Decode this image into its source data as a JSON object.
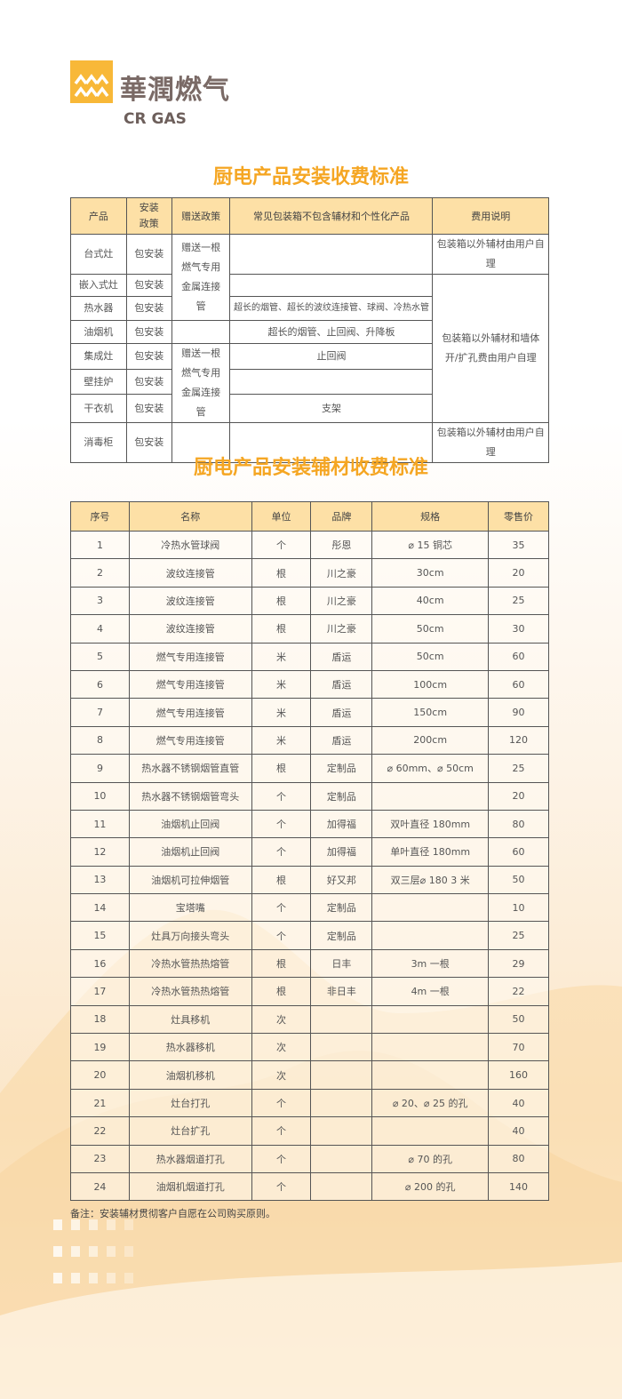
{
  "logo": {
    "name_cn": "華潤燃气",
    "name_en": "CR GAS",
    "color": "#f8b838"
  },
  "colors": {
    "accent": "#f5a623",
    "header_bg": "#fde0a6"
  },
  "table1": {
    "title": "厨电产品安装收费标准",
    "headers": [
      "产品",
      "安装政策",
      "赠送政策",
      "常见包装箱不包含辅材和个性化产品",
      "费用说明"
    ],
    "gift_policy": "赠送一根燃气专用金属连接管",
    "fee_note_single": "包装箱以外辅材由用户自理",
    "fee_note_merged": "包装箱以外辅材和墙体开/扩孔费由用户自理",
    "rows": [
      {
        "product": "台式灶",
        "install": "包安装",
        "extras": ""
      },
      {
        "product": "嵌入式灶",
        "install": "包安装",
        "extras": ""
      },
      {
        "product": "热水器",
        "install": "包安装",
        "extras": "超长的烟管、超长的波纹连接管、球阀、冷热水管"
      },
      {
        "product": "油烟机",
        "install": "包安装",
        "extras": "超长的烟管、止回阀、升降板"
      },
      {
        "product": "集成灶",
        "install": "包安装",
        "extras": "止回阀"
      },
      {
        "product": "壁挂炉",
        "install": "包安装",
        "extras": ""
      },
      {
        "product": "干衣机",
        "install": "包安装",
        "extras": "支架"
      },
      {
        "product": "消毒柜",
        "install": "包安装",
        "extras": ""
      }
    ]
  },
  "table2": {
    "title": "厨电产品安装辅材收费标准",
    "headers": [
      "序号",
      "名称",
      "单位",
      "品牌",
      "规格",
      "零售价"
    ],
    "rows": [
      [
        "1",
        "冷热水管球阀",
        "个",
        "彤恩",
        "⌀ 15 铜芯",
        "35"
      ],
      [
        "2",
        "波纹连接管",
        "根",
        "川之豪",
        "30cm",
        "20"
      ],
      [
        "3",
        "波纹连接管",
        "根",
        "川之豪",
        "40cm",
        "25"
      ],
      [
        "4",
        "波纹连接管",
        "根",
        "川之豪",
        "50cm",
        "30"
      ],
      [
        "5",
        "燃气专用连接管",
        "米",
        "盾运",
        "50cm",
        "60"
      ],
      [
        "6",
        "燃气专用连接管",
        "米",
        "盾运",
        "100cm",
        "60"
      ],
      [
        "7",
        "燃气专用连接管",
        "米",
        "盾运",
        "150cm",
        "90"
      ],
      [
        "8",
        "燃气专用连接管",
        "米",
        "盾运",
        "200cm",
        "120"
      ],
      [
        "9",
        "热水器不锈钢烟管直管",
        "根",
        "定制品",
        "⌀ 60mm、⌀ 50cm",
        "25"
      ],
      [
        "10",
        "热水器不锈钢烟管弯头",
        "个",
        "定制品",
        "",
        "20"
      ],
      [
        "11",
        "油烟机止回阀",
        "个",
        "加得福",
        "双叶直径 180mm",
        "80"
      ],
      [
        "12",
        "油烟机止回阀",
        "个",
        "加得福",
        "单叶直径 180mm",
        "60"
      ],
      [
        "13",
        "油烟机可拉伸烟管",
        "根",
        "好又邦",
        "双三层⌀ 180 3 米",
        "50"
      ],
      [
        "14",
        "宝塔嘴",
        "个",
        "定制品",
        "",
        "10"
      ],
      [
        "15",
        "灶具万向接头弯头",
        "个",
        "定制品",
        "",
        "25"
      ],
      [
        "16",
        "冷热水管热热熔管",
        "根",
        "日丰",
        "3m 一根",
        "29"
      ],
      [
        "17",
        "冷热水管热热熔管",
        "根",
        "非日丰",
        "4m 一根",
        "22"
      ],
      [
        "18",
        "灶具移机",
        "次",
        "",
        "",
        "50"
      ],
      [
        "19",
        "热水器移机",
        "次",
        "",
        "",
        "70"
      ],
      [
        "20",
        "油烟机移机",
        "次",
        "",
        "",
        "160"
      ],
      [
        "21",
        "灶台打孔",
        "个",
        "",
        "⌀ 20、⌀ 25 的孔",
        "40"
      ],
      [
        "22",
        "灶台扩孔",
        "个",
        "",
        "",
        "40"
      ],
      [
        "23",
        "热水器烟道打孔",
        "个",
        "",
        "⌀ 70 的孔",
        "80"
      ],
      [
        "24",
        "油烟机烟道打孔",
        "个",
        "",
        "⌀ 200 的孔",
        "140"
      ]
    ],
    "note": "备注：安装辅材贯彻客户自愿在公司购买原则。"
  }
}
